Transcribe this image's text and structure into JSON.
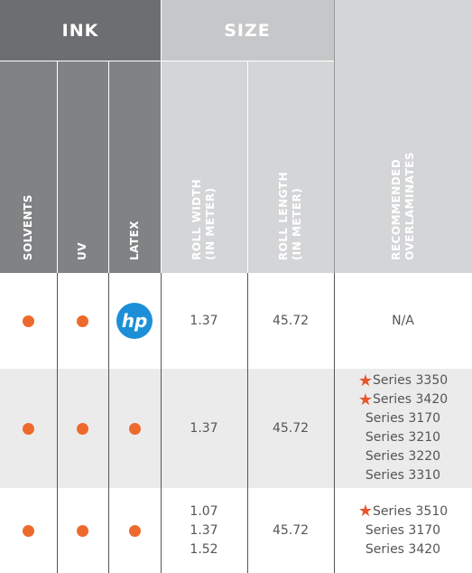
{
  "header": {
    "groups": [
      "INK",
      "SIZE"
    ],
    "columns": [
      [
        "SOLVENTS"
      ],
      [
        "UV"
      ],
      [
        "LATEX"
      ],
      [
        "ROLL WIDTH",
        "(IN METER)"
      ],
      [
        "ROLL LENGTH",
        "(IN METER)"
      ],
      [
        "RECOMMENDED",
        "OVERLAMINATES"
      ]
    ]
  },
  "rows": [
    {
      "latex_logo": "hp",
      "roll_width": [
        "1.37"
      ],
      "roll_length": "45.72",
      "overlaminates": [
        "N/A"
      ]
    },
    {
      "roll_width": [
        "1.37"
      ],
      "roll_length": "45.72",
      "overlaminates": [
        "Series 3350",
        "Series 3420",
        "Series 3170",
        "Series 3210",
        "Series 3220",
        "Series 3310"
      ]
    },
    {
      "roll_width": [
        "1.07",
        "1.37",
        "1.52"
      ],
      "roll_length": "45.72",
      "overlaminates": [
        "Series 3510",
        "Series 3170",
        "Series 3420"
      ]
    }
  ]
}
